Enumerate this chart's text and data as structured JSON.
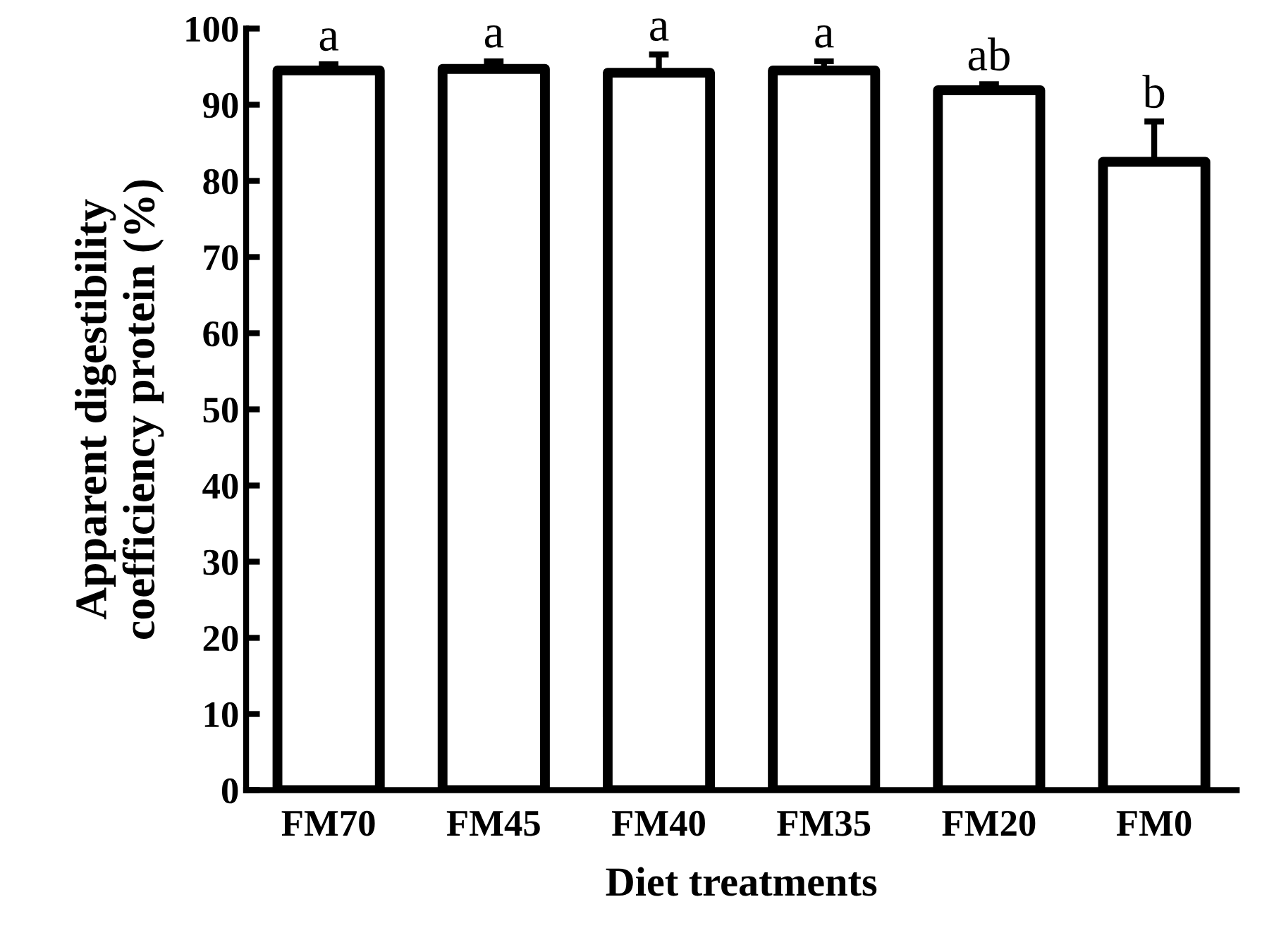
{
  "chart_data": {
    "type": "bar",
    "xlabel": "Diet treatments",
    "ylabel": "Apparent digestibility\ncoefficiency protein (%)",
    "categories": [
      "FM70",
      "FM45",
      "FM40",
      "FM35",
      "FM20",
      "FM0"
    ],
    "values": [
      94.5,
      94.7,
      94.2,
      94.5,
      91.9,
      82.5
    ],
    "errors": [
      [
        94.5,
        95.3
      ],
      [
        94.7,
        95.7
      ],
      [
        94.2,
        96.6
      ],
      [
        94.5,
        95.7
      ],
      [
        91.9,
        92.7
      ],
      [
        82.5,
        87.8
      ]
    ],
    "color": "#ffffff",
    "ylim": [
      0,
      100
    ],
    "yticks": [
      0,
      10,
      20,
      30,
      40,
      50,
      60,
      70,
      80,
      90,
      100
    ],
    "grid": false,
    "legend": false,
    "annotations": [
      {
        "text": "a",
        "x": "FM70",
        "y": 95.3
      },
      {
        "text": "a",
        "x": "FM45",
        "y": 95.7
      },
      {
        "text": "a",
        "x": "FM40",
        "y": 96.6
      },
      {
        "text": "a",
        "x": "FM35",
        "y": 95.7
      },
      {
        "text": "ab",
        "x": "FM20",
        "y": 92.7
      },
      {
        "text": "b",
        "x": "FM0",
        "y": 87.8
      }
    ]
  }
}
